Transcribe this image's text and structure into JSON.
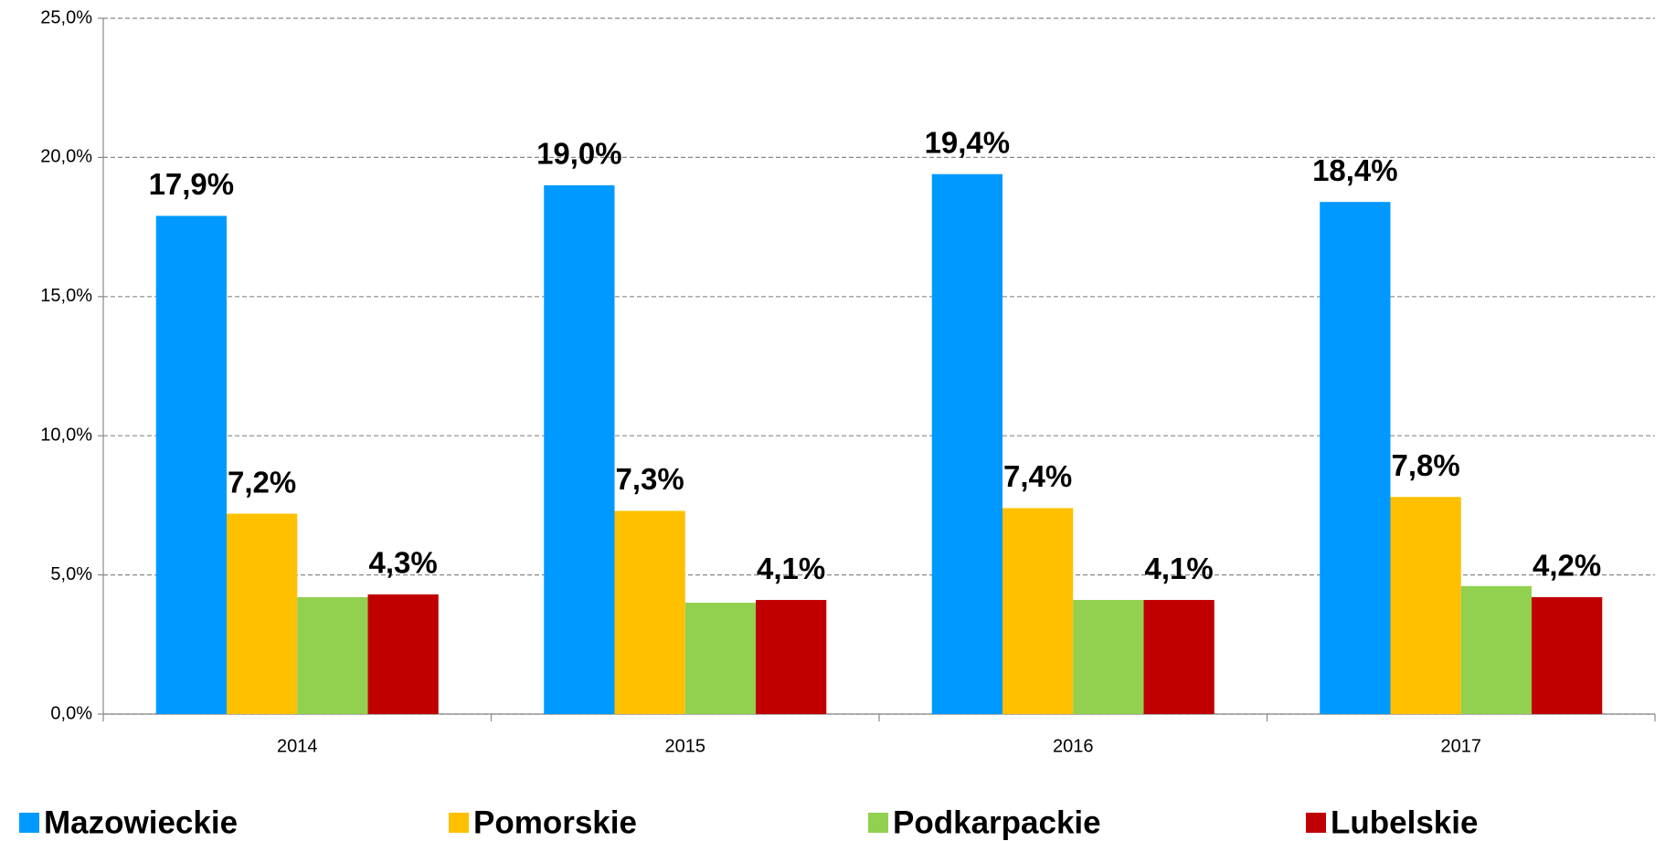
{
  "chart_data": {
    "type": "bar",
    "categories": [
      "2014",
      "2015",
      "2016",
      "2017"
    ],
    "series": [
      {
        "name": "Mazowieckie",
        "color": "#0099ff",
        "values": [
          17.9,
          19.0,
          19.4,
          18.4
        ],
        "value_labels": [
          "17,9%",
          "19,0%",
          "19,4%",
          "18,4%"
        ]
      },
      {
        "name": "Pomorskie",
        "color": "#ffc000",
        "values": [
          7.2,
          7.3,
          7.4,
          7.8
        ],
        "value_labels": [
          "7,2%",
          "7,3%",
          "7,4%",
          "7,8%"
        ]
      },
      {
        "name": "Podkarpackie",
        "color": "#92d050",
        "values": [
          4.2,
          4.0,
          4.1,
          4.6
        ]
      },
      {
        "name": "Lubelskie",
        "color": "#c00000",
        "values": [
          4.3,
          4.1,
          4.1,
          4.2
        ],
        "value_labels": [
          "4,3%",
          "4,1%",
          "4,1%",
          "4,2%"
        ]
      }
    ],
    "ylim": [
      0,
      25
    ],
    "yticks": [
      {
        "value": 0,
        "label": "0,0%"
      },
      {
        "value": 5,
        "label": "5,0%"
      },
      {
        "value": 10,
        "label": "10,0%"
      },
      {
        "value": 15,
        "label": "15,0%"
      },
      {
        "value": 20,
        "label": "20,0%"
      },
      {
        "value": 25,
        "label": "25,0%"
      }
    ],
    "grid": true,
    "legend": "bottom"
  }
}
